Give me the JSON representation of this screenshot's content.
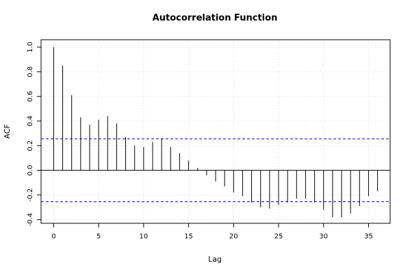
{
  "chart_data": {
    "type": "bar",
    "title": "Autocorrelation Function",
    "xlabel": "Lag",
    "ylabel": "ACF",
    "xlim": [
      -1.4,
      37.4
    ],
    "ylim": [
      -0.43,
      1.06
    ],
    "x_ticks": [
      0,
      5,
      10,
      15,
      20,
      25,
      30,
      35
    ],
    "x_tick_labels": [
      "0",
      "5",
      "10",
      "15",
      "20",
      "25",
      "30",
      "35"
    ],
    "y_ticks": [
      -0.4,
      -0.2,
      0.0,
      0.2,
      0.4,
      0.6,
      0.8,
      1.0
    ],
    "y_tick_labels": [
      "-0.4",
      "-0.2",
      "0.0",
      "0.2",
      "0.4",
      "0.6",
      "0.8",
      "1.0"
    ],
    "grid": true,
    "confidence_band": [
      0.255,
      -0.255
    ],
    "colors": {
      "bars": "#000000",
      "band": "#0000ff",
      "grid": "#d3d3d3",
      "zero_line": "#000000"
    },
    "lags": [
      0,
      1,
      2,
      3,
      4,
      5,
      6,
      7,
      8,
      9,
      10,
      11,
      12,
      13,
      14,
      15,
      16,
      17,
      18,
      19,
      20,
      21,
      22,
      23,
      24,
      25,
      26,
      27,
      28,
      29,
      30,
      31,
      32,
      33,
      34,
      35,
      36
    ],
    "values": [
      1.0,
      0.85,
      0.61,
      0.43,
      0.37,
      0.41,
      0.44,
      0.38,
      0.27,
      0.2,
      0.19,
      0.23,
      0.26,
      0.19,
      0.14,
      0.08,
      0.02,
      -0.04,
      -0.09,
      -0.13,
      -0.18,
      -0.21,
      -0.26,
      -0.3,
      -0.31,
      -0.28,
      -0.26,
      -0.23,
      -0.23,
      -0.26,
      -0.32,
      -0.38,
      -0.38,
      -0.35,
      -0.29,
      -0.21,
      -0.17
    ]
  }
}
